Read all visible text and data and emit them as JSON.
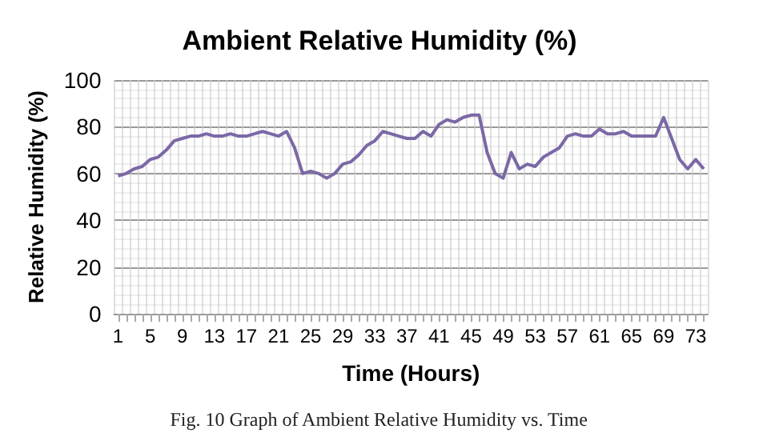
{
  "chart_data": {
    "type": "line",
    "title": "Ambient Relative Humidity (%)",
    "xlabel": "Time (Hours)",
    "ylabel": "Relative Humidity (%)",
    "annotations": [
      "Fig. 10 Graph of Ambient Relative Humidity vs. Time"
    ],
    "categories": [
      "1",
      null,
      null,
      null,
      "5",
      null,
      null,
      null,
      "9",
      null,
      null,
      null,
      "13",
      null,
      null,
      null,
      "17",
      null,
      null,
      null,
      "21",
      null,
      null,
      null,
      "25",
      null,
      null,
      null,
      "29",
      null,
      null,
      null,
      "33",
      null,
      null,
      null,
      "37",
      null,
      null,
      null,
      "41",
      null,
      null,
      null,
      "45",
      null,
      null,
      null,
      "49",
      null,
      null,
      null,
      "53",
      null,
      null,
      null,
      "57",
      null,
      null,
      null,
      "61",
      null,
      null,
      null,
      "65",
      null,
      null,
      null,
      "69",
      null,
      null,
      null,
      "73",
      null
    ],
    "series": [
      {
        "color": "#7b68a6",
        "values": [
          59,
          60,
          62,
          63,
          66,
          67,
          70,
          74,
          75,
          76,
          76,
          77,
          76,
          76,
          77,
          76,
          76,
          77,
          78,
          77,
          76,
          78,
          71,
          60,
          61,
          60,
          58,
          60,
          64,
          65,
          68,
          72,
          74,
          78,
          77,
          76,
          75,
          75,
          78,
          76,
          81,
          83,
          82,
          84,
          85,
          85,
          69,
          60,
          58,
          69,
          62,
          64,
          63,
          67,
          69,
          71,
          76,
          77,
          76,
          76,
          79,
          77,
          77,
          78,
          76,
          76,
          76,
          76,
          84,
          75,
          66,
          62,
          66,
          62
        ]
      }
    ],
    "ylim": [
      0,
      100
    ],
    "yticks": [
      0,
      20,
      40,
      60,
      80,
      100
    ],
    "grid": true,
    "marker": "none",
    "line_style": "solid"
  }
}
